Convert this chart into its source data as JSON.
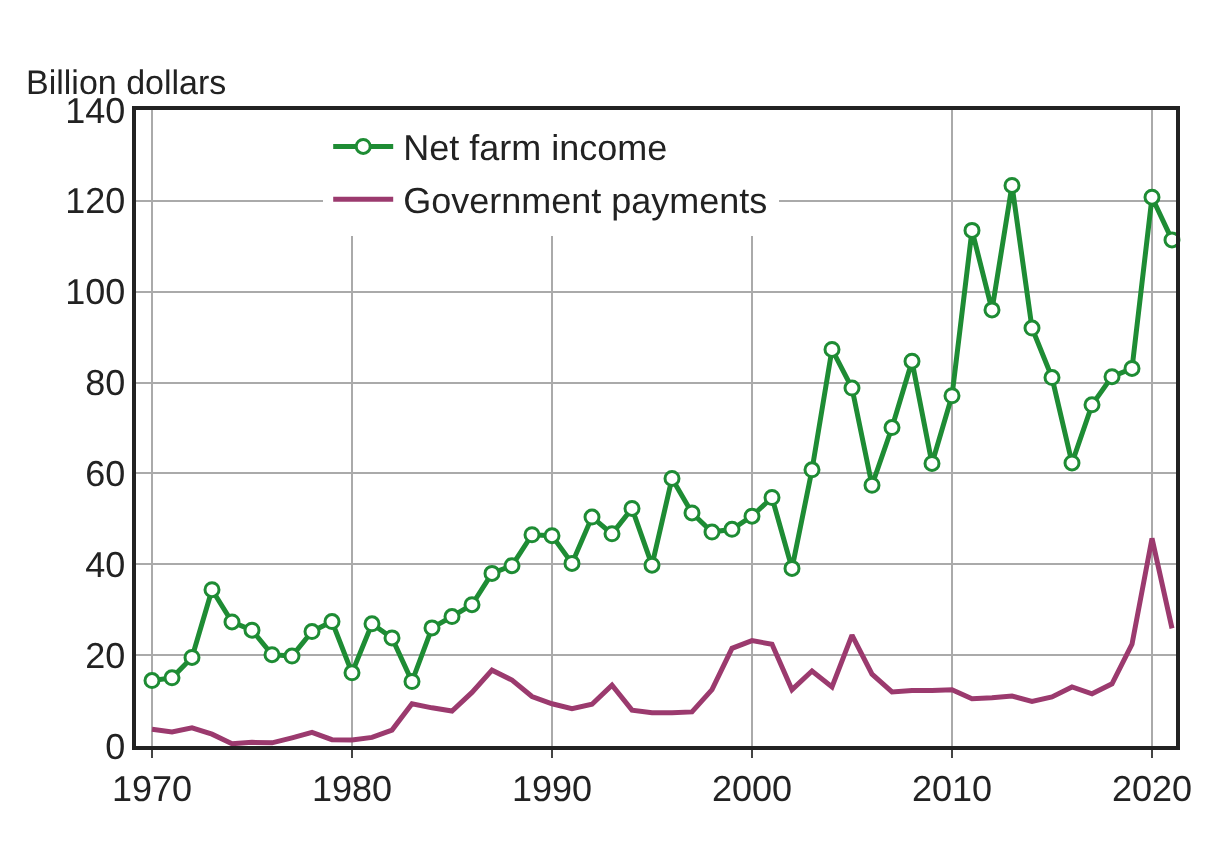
{
  "chart_data": {
    "type": "line",
    "ylabel": "Billion dollars",
    "x": [
      1970,
      1971,
      1972,
      1973,
      1974,
      1975,
      1976,
      1977,
      1978,
      1979,
      1980,
      1981,
      1982,
      1983,
      1984,
      1985,
      1986,
      1987,
      1988,
      1989,
      1990,
      1991,
      1992,
      1993,
      1994,
      1995,
      1996,
      1997,
      1998,
      1999,
      2000,
      2001,
      2002,
      2003,
      2004,
      2005,
      2006,
      2007,
      2008,
      2009,
      2010,
      2011,
      2012,
      2013,
      2014,
      2015,
      2016,
      2017,
      2018,
      2019,
      2020,
      2021
    ],
    "series": [
      {
        "name": "Net farm income",
        "color": "#1e8c34",
        "marker": "circle",
        "values": [
          14.4,
          15,
          19.5,
          34.4,
          27.3,
          25.5,
          20.1,
          19.8,
          25.2,
          27.4,
          16.1,
          26.9,
          23.8,
          14.2,
          26,
          28.5,
          31.1,
          38,
          39.7,
          46.5,
          46.3,
          40.2,
          50.4,
          46.7,
          52.3,
          39.8,
          58.9,
          51.3,
          47.1,
          47.7,
          50.6,
          54.7,
          39.1,
          60.8,
          87.3,
          78.8,
          57.4,
          70.1,
          84.7,
          62.2,
          77.1,
          113.5,
          96,
          123.4,
          92,
          81.1,
          62.3,
          75.1,
          81.3,
          83.1,
          120.8,
          111.4
        ]
      },
      {
        "name": "Government payments",
        "color": "#9b3a6e",
        "marker": "none",
        "values": [
          3.7,
          3.1,
          4,
          2.6,
          0.5,
          0.8,
          0.7,
          1.8,
          3,
          1.4,
          1.3,
          1.9,
          3.5,
          9.3,
          8.4,
          7.7,
          11.8,
          16.7,
          14.5,
          10.9,
          9.3,
          8.2,
          9.2,
          13.4,
          7.9,
          7.3,
          7.3,
          7.5,
          12.4,
          21.5,
          23.2,
          22.4,
          12.4,
          16.5,
          13,
          24.4,
          15.8,
          11.9,
          12.2,
          12.2,
          12.4,
          10.4,
          10.6,
          11,
          9.8,
          10.8,
          13,
          11.5,
          13.7,
          22.4,
          45.7,
          25.9
        ]
      }
    ],
    "xlim": [
      1969.2,
      2021.2
    ],
    "xticks": [
      1970,
      1980,
      1990,
      2000,
      2010,
      2020
    ],
    "ylim": [
      0,
      140
    ],
    "yticks": [
      0,
      20,
      40,
      60,
      80,
      100,
      120,
      140
    ],
    "grid": true,
    "legend": "top",
    "line_style": "solid"
  }
}
